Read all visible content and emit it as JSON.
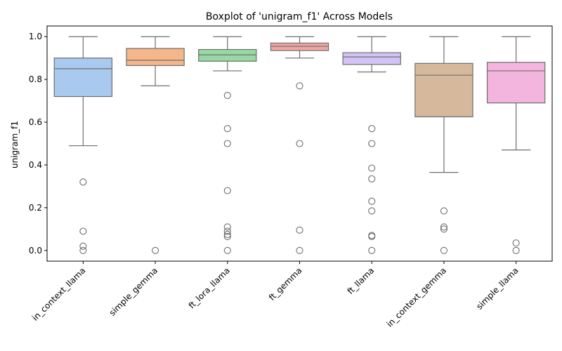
{
  "chart_data": {
    "type": "boxplot",
    "title": "Boxplot of 'unigram_f1' Across Models",
    "xlabel": "",
    "ylabel": "unigram_f1",
    "ylim": [
      -0.05,
      1.05
    ],
    "yticks": [
      0.0,
      0.2,
      0.4,
      0.6,
      0.8,
      1.0
    ],
    "ytick_labels": [
      "0.0",
      "0.2",
      "0.4",
      "0.6",
      "0.8",
      "1.0"
    ],
    "grid": false,
    "legend": "none",
    "categories": [
      "in_context_llama",
      "simple_gemma",
      "ft_lora_llama",
      "ft_gemma",
      "ft_llama",
      "in_context_gemma",
      "simple_llama"
    ],
    "boxes": [
      {
        "category": "in_context_llama",
        "color": "#a9c9ef",
        "whisker_low": 0.49,
        "q1": 0.72,
        "median": 0.85,
        "q3": 0.9,
        "whisker_high": 1.0,
        "outliers": [
          0.32,
          0.09,
          0.02,
          0.0
        ]
      },
      {
        "category": "simple_gemma",
        "color": "#f6b68b",
        "whisker_low": 0.77,
        "q1": 0.865,
        "median": 0.89,
        "q3": 0.945,
        "whisker_high": 1.0,
        "outliers": [
          0.0
        ]
      },
      {
        "category": "ft_lora_llama",
        "color": "#98d8a4",
        "whisker_low": 0.84,
        "q1": 0.885,
        "median": 0.915,
        "q3": 0.94,
        "whisker_high": 1.0,
        "outliers": [
          0.725,
          0.57,
          0.5,
          0.28,
          0.11,
          0.09,
          0.075,
          0.065,
          0.0
        ]
      },
      {
        "category": "ft_gemma",
        "color": "#efa6a2",
        "whisker_low": 0.9,
        "q1": 0.935,
        "median": 0.955,
        "q3": 0.97,
        "whisker_high": 1.0,
        "outliers": [
          0.77,
          0.5,
          0.095,
          0.0
        ]
      },
      {
        "category": "ft_llama",
        "color": "#d3c3f5",
        "whisker_low": 0.835,
        "q1": 0.87,
        "median": 0.905,
        "q3": 0.925,
        "whisker_high": 1.0,
        "outliers": [
          0.57,
          0.5,
          0.385,
          0.335,
          0.23,
          0.185,
          0.07,
          0.065,
          0.0
        ]
      },
      {
        "category": "in_context_gemma",
        "color": "#d6b99c",
        "whisker_low": 0.365,
        "q1": 0.625,
        "median": 0.82,
        "q3": 0.875,
        "whisker_high": 1.0,
        "outliers": [
          0.185,
          0.11,
          0.1,
          0.0
        ]
      },
      {
        "category": "simple_llama",
        "color": "#f3b5de",
        "whisker_low": 0.47,
        "q1": 0.69,
        "median": 0.84,
        "q3": 0.88,
        "whisker_high": 1.0,
        "outliers": [
          0.035,
          0.0
        ]
      }
    ]
  }
}
